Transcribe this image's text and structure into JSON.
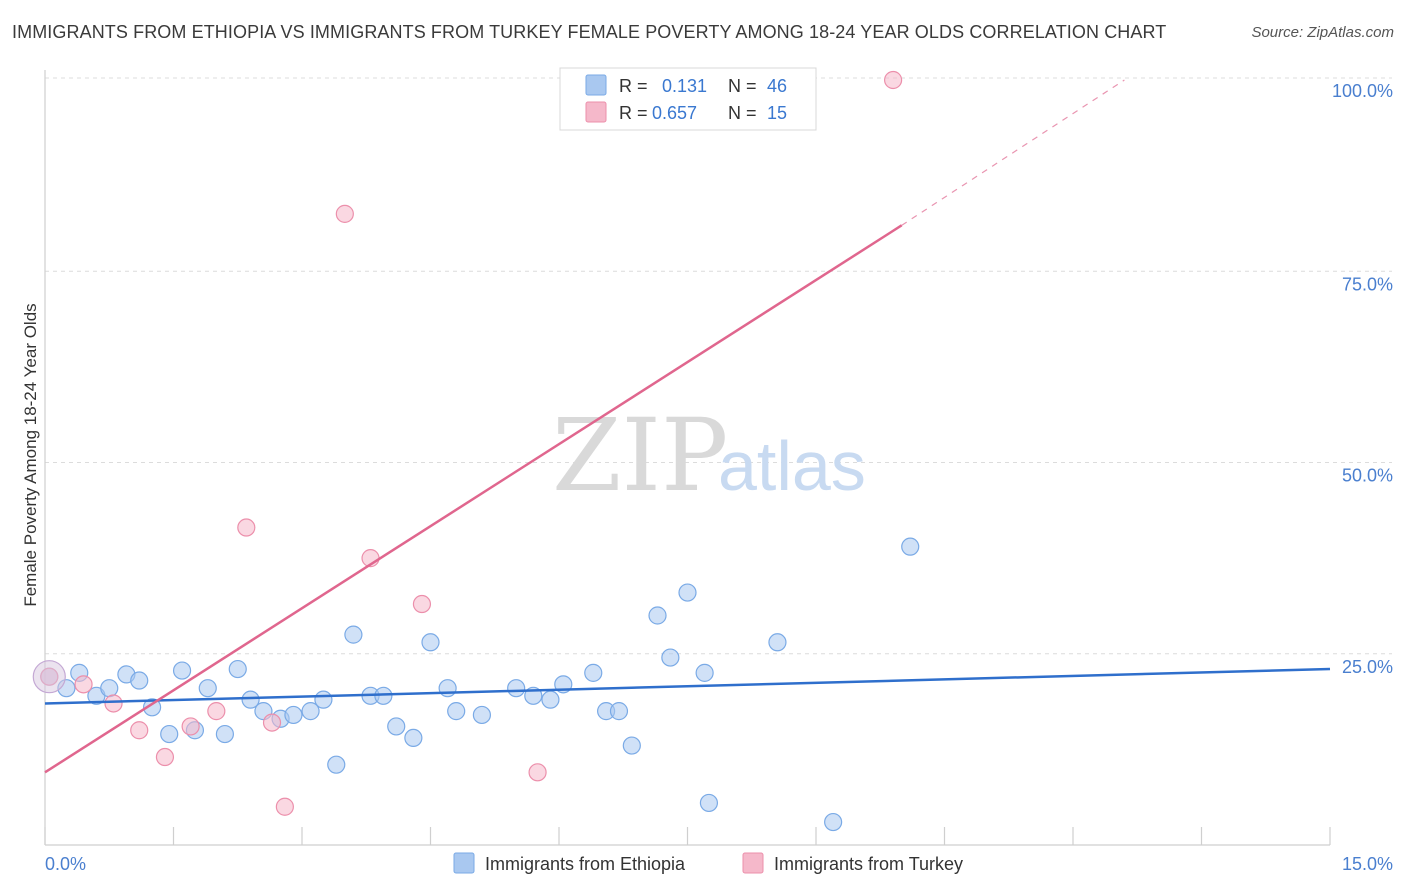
{
  "header": {
    "title": "IMMIGRANTS FROM ETHIOPIA VS IMMIGRANTS FROM TURKEY FEMALE POVERTY AMONG 18-24 YEAR OLDS CORRELATION CHART",
    "source": "Source: ZipAtlas.com"
  },
  "watermark": {
    "zip": "ZIP",
    "atlas": "atlas"
  },
  "legend": {
    "rows": [
      {
        "r_label": "R =",
        "r_value": "0.131",
        "n_label": "N =",
        "n_value": "46",
        "color": "#a9c8f0"
      },
      {
        "r_label": "R =",
        "r_value": "0.657",
        "n_label": "N =",
        "n_value": "15",
        "color": "#f5b8ca"
      }
    ]
  },
  "chart_data": {
    "type": "scatter",
    "title": "IMMIGRANTS FROM ETHIOPIA VS IMMIGRANTS FROM TURKEY FEMALE POVERTY AMONG 18-24 YEAR OLDS CORRELATION CHART",
    "xlabel": "",
    "ylabel": "Female Poverty Among 18-24 Year Olds",
    "xlim": [
      0,
      15
    ],
    "ylim": [
      0,
      100
    ],
    "x_tick_labels": [
      "0.0%",
      "15.0%"
    ],
    "y_ticks": [
      25,
      50,
      75,
      100
    ],
    "y_tick_labels": [
      "25.0%",
      "50.0%",
      "75.0%",
      "100.0%"
    ],
    "grid": true,
    "legend_position": "top-center",
    "series": [
      {
        "name": "Immigrants from Ethiopia",
        "color": "#a9c8f0",
        "edge": "#7aaae6",
        "line_color": "#2f6fcc",
        "trend": {
          "x0": 0,
          "y0": 18.5,
          "x1": 15,
          "y1": 23.0
        },
        "points": [
          [
            0.05,
            22.0
          ],
          [
            0.25,
            20.5
          ],
          [
            0.4,
            22.5
          ],
          [
            0.6,
            19.5
          ],
          [
            0.75,
            20.5
          ],
          [
            0.95,
            22.3
          ],
          [
            1.1,
            21.5
          ],
          [
            1.25,
            18.0
          ],
          [
            1.45,
            14.5
          ],
          [
            1.6,
            22.8
          ],
          [
            1.75,
            15.0
          ],
          [
            1.9,
            20.5
          ],
          [
            2.1,
            14.5
          ],
          [
            2.25,
            23.0
          ],
          [
            2.4,
            19.0
          ],
          [
            2.55,
            17.5
          ],
          [
            2.75,
            16.5
          ],
          [
            2.9,
            17.0
          ],
          [
            3.1,
            17.5
          ],
          [
            3.25,
            19.0
          ],
          [
            3.4,
            10.5
          ],
          [
            3.6,
            27.5
          ],
          [
            3.8,
            19.5
          ],
          [
            3.95,
            19.5
          ],
          [
            4.1,
            15.5
          ],
          [
            4.3,
            14.0
          ],
          [
            4.5,
            26.5
          ],
          [
            4.7,
            20.5
          ],
          [
            4.8,
            17.5
          ],
          [
            5.1,
            17.0
          ],
          [
            5.5,
            20.5
          ],
          [
            5.7,
            19.5
          ],
          [
            5.9,
            19.0
          ],
          [
            6.05,
            21.0
          ],
          [
            6.4,
            22.5
          ],
          [
            6.55,
            17.5
          ],
          [
            6.7,
            17.5
          ],
          [
            6.85,
            13.0
          ],
          [
            7.15,
            30.0
          ],
          [
            7.3,
            24.5
          ],
          [
            7.5,
            33.0
          ],
          [
            7.7,
            22.5
          ],
          [
            7.75,
            5.5
          ],
          [
            8.55,
            26.5
          ],
          [
            9.2,
            3.0
          ],
          [
            10.1,
            39.0
          ]
        ]
      },
      {
        "name": "Immigrants from Turkey",
        "color": "#f5b8ca",
        "edge": "#ec8fab",
        "line_color": "#e0668e",
        "trend": {
          "x0": 0,
          "y0": 9.5,
          "x1": 10.0,
          "y1": 81.0
        },
        "trend_dashed": {
          "x0": 10.0,
          "y0": 81.0,
          "x1": 12.6,
          "y1": 100.0
        },
        "points": [
          [
            0.05,
            22.0
          ],
          [
            0.45,
            21.0
          ],
          [
            0.8,
            18.5
          ],
          [
            1.1,
            15.0
          ],
          [
            1.4,
            11.5
          ],
          [
            1.7,
            15.5
          ],
          [
            2.0,
            17.5
          ],
          [
            2.35,
            41.5
          ],
          [
            2.65,
            16.0
          ],
          [
            2.8,
            5.0
          ],
          [
            3.5,
            82.5
          ],
          [
            3.8,
            37.5
          ],
          [
            4.4,
            31.5
          ],
          [
            5.75,
            9.5
          ],
          [
            9.9,
            100.0
          ]
        ]
      }
    ]
  },
  "bottom_legend": {
    "items": [
      {
        "label": "Immigrants from Ethiopia",
        "color": "#a9c8f0"
      },
      {
        "label": "Immigrants from Turkey",
        "color": "#f5b8ca"
      }
    ]
  }
}
